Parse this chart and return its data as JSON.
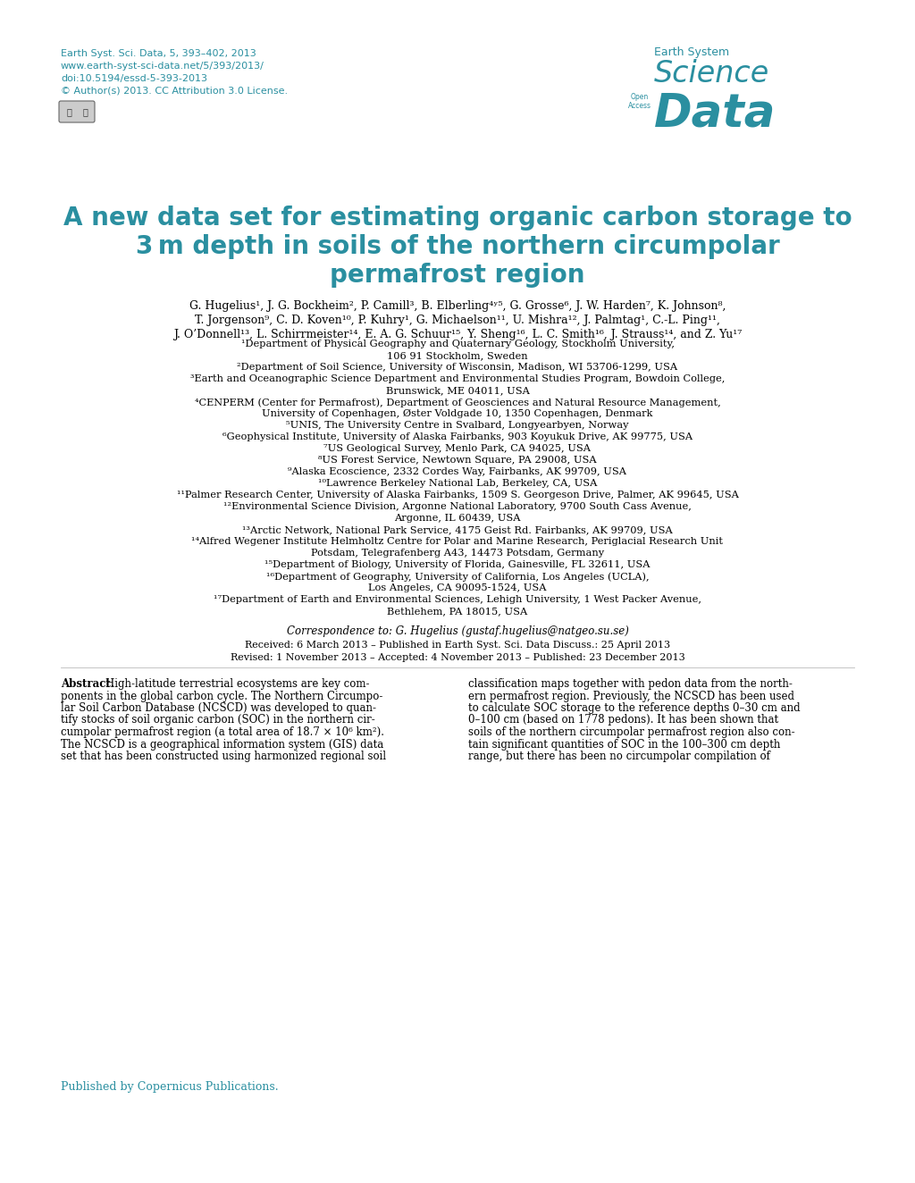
{
  "background_color": "#ffffff",
  "teal_color": "#2a8fa0",
  "text_color": "#000000",
  "header_line1": "Earth Syst. Sci. Data, 5, 393–402, 2013",
  "header_line2": "www.earth-syst-sci-data.net/5/393/2013/",
  "header_line3": "doi:10.5194/essd-5-393-2013",
  "header_line4": "© Author(s) 2013. CC Attribution 3.0 License.",
  "logo_text1": "Earth System",
  "logo_text2": "Science",
  "logo_text3": "Data",
  "logo_open_access": "Open\nAccess",
  "title_line1": "A new data set for estimating organic carbon storage to",
  "title_line2": "3 m depth in soils of the northern circumpolar",
  "title_line3": "permafrost region",
  "authors_line1": "G. Hugelius¹, J. G. Bockheim², P. Camill³, B. Elberling⁴ʸ⁵, G. Grosse⁶, J. W. Harden⁷, K. Johnson⁸,",
  "authors_line2": "T. Jorgenson⁹, C. D. Koven¹⁰, P. Kuhry¹, G. Michaelson¹¹, U. Mishra¹², J. Palmtag¹, C.-L. Ping¹¹,",
  "authors_line3": "J. O’Donnell¹³, L. Schirrmeister¹⁴, E. A. G. Schuur¹⁵, Y. Sheng¹⁶, L. C. Smith¹⁶, J. Strauss¹⁴, and Z. Yu¹⁷",
  "aff1": "¹Department of Physical Geography and Quaternary Geology, Stockholm University,",
  "aff1b": "106 91 Stockholm, Sweden",
  "aff2": "²Department of Soil Science, University of Wisconsin, Madison, WI 53706-1299, USA",
  "aff3": "³Earth and Oceanographic Science Department and Environmental Studies Program, Bowdoin College,",
  "aff3b": "Brunswick, ME 04011, USA",
  "aff4": "⁴CENPERM (Center for Permafrost), Department of Geosciences and Natural Resource Management,",
  "aff4b": "University of Copenhagen, Øster Voldgade 10, 1350 Copenhagen, Denmark",
  "aff5": "⁵UNIS, The University Centre in Svalbard, Longyearbyen, Norway",
  "aff6": "⁶Geophysical Institute, University of Alaska Fairbanks, 903 Koyukuk Drive, AK 99775, USA",
  "aff7": "⁷US Geological Survey, Menlo Park, CA 94025, USA",
  "aff8": "⁸US Forest Service, Newtown Square, PA 29008, USA",
  "aff9": "⁹Alaska Ecoscience, 2332 Cordes Way, Fairbanks, AK 99709, USA",
  "aff10": "¹⁰Lawrence Berkeley National Lab, Berkeley, CA, USA",
  "aff11": "¹¹Palmer Research Center, University of Alaska Fairbanks, 1509 S. Georgeson Drive, Palmer, AK 99645, USA",
  "aff12": "¹²Environmental Science Division, Argonne National Laboratory, 9700 South Cass Avenue,",
  "aff12b": "Argonne, IL 60439, USA",
  "aff13": "¹³Arctic Network, National Park Service, 4175 Geist Rd. Fairbanks, AK 99709, USA",
  "aff14": "¹⁴Alfred Wegener Institute Helmholtz Centre for Polar and Marine Research, Periglacial Research Unit",
  "aff14b": "Potsdam, Telegrafenberg A43, 14473 Potsdam, Germany",
  "aff15": "¹⁵Department of Biology, University of Florida, Gainesville, FL 32611, USA",
  "aff16": "¹⁶Department of Geography, University of California, Los Angeles (UCLA),",
  "aff16b": "Los Angeles, CA 90095-1524, USA",
  "aff17": "¹⁷Department of Earth and Environmental Sciences, Lehigh University, 1 West Packer Avenue,",
  "aff17b": "Bethlehem, PA 18015, USA",
  "correspondence": "Correspondence to: G. Hugelius (gustaf.hugelius@natgeo.su.se)",
  "received": "Received: 6 March 2013 – Published in Earth Syst. Sci. Data Discuss.: 25 April 2013",
  "revised": "Revised: 1 November 2013 – Accepted: 4 November 2013 – Published: 23 December 2013",
  "abstract_bold": "Abstract.",
  "abs_left": [
    "High-latitude terrestrial ecosystems are key com-",
    "ponents in the global carbon cycle. The Northern Circumpo-",
    "lar Soil Carbon Database (NCSCD) was developed to quan-",
    "tify stocks of soil organic carbon (SOC) in the northern cir-",
    "cumpolar permafrost region (a total area of 18.7 × 10⁶ km²).",
    "The NCSCD is a geographical information system (GIS) data",
    "set that has been constructed using harmonized regional soil"
  ],
  "abs_right": [
    "classification maps together with pedon data from the north-",
    "ern permafrost region. Previously, the NCSCD has been used",
    "to calculate SOC storage to the reference depths 0–30 cm and",
    "0–100 cm (based on 1778 pedons). It has been shown that",
    "soils of the northern circumpolar permafrost region also con-",
    "tain significant quantities of SOC in the 100–300 cm depth",
    "range, but there has been no circumpolar compilation of"
  ],
  "published_by": "Published by Copernicus Publications."
}
